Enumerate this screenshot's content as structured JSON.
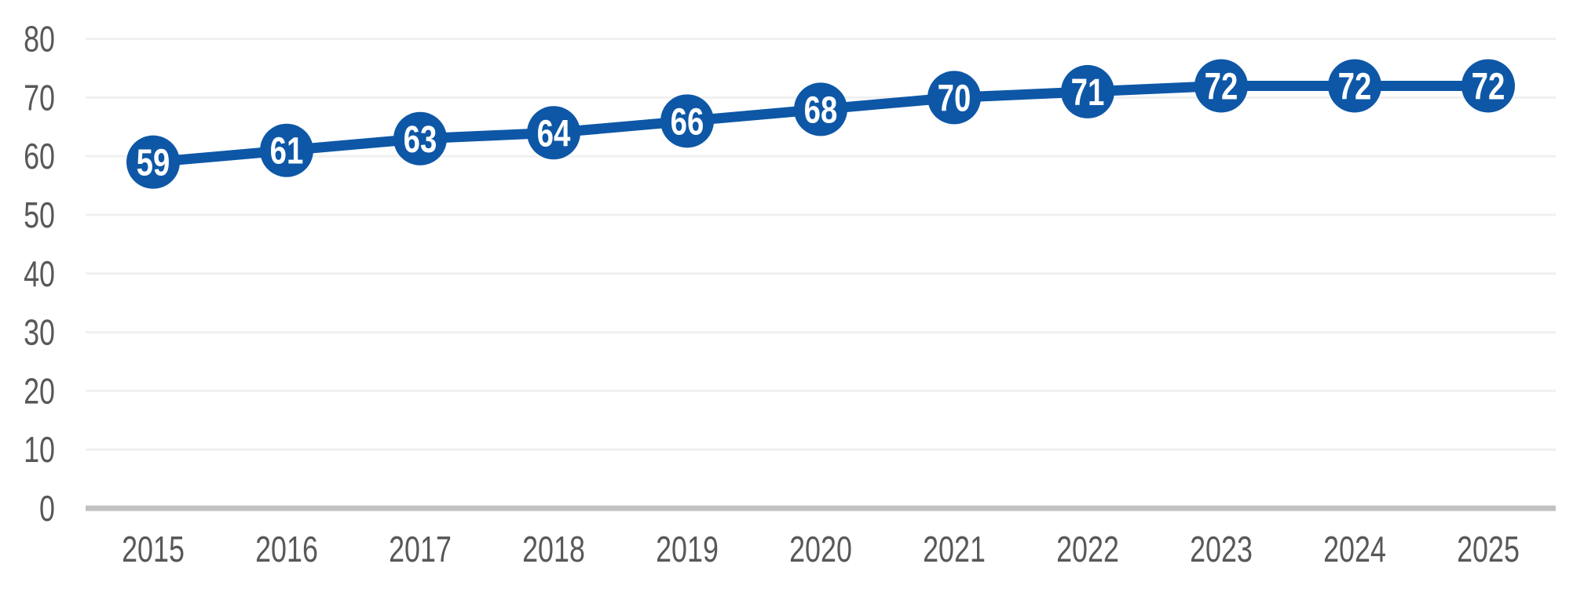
{
  "chart_data": {
    "type": "line",
    "title": "",
    "xlabel": "",
    "ylabel": "",
    "categories": [
      "2015",
      "2016",
      "2017",
      "2018",
      "2019",
      "2020",
      "2021",
      "2022",
      "2023",
      "2024",
      "2025"
    ],
    "series": [
      {
        "name": "value",
        "values": [
          59,
          61,
          63,
          64,
          66,
          68,
          70,
          71,
          72,
          72,
          72
        ]
      }
    ],
    "point_labels": [
      "59",
      "61",
      "63",
      "64",
      "66",
      "68",
      "70",
      "71",
      "72",
      "72",
      "72"
    ],
    "ylim": [
      0,
      80
    ],
    "y_ticks": [
      0,
      10,
      20,
      30,
      40,
      50,
      60,
      70,
      80
    ],
    "y_tick_labels": [
      "0",
      "10",
      "20",
      "30",
      "40",
      "50",
      "60",
      "70",
      "80"
    ],
    "grid": true,
    "legend_position": "none",
    "marker_style": "filled-circle-with-value"
  },
  "colors": {
    "line": "#0d57a6",
    "marker_fill": "#0d57a6",
    "marker_text": "#ffffff",
    "gridline": "#f0f0f0",
    "baseline": "#c1c1c1",
    "axis_label": "#58585a",
    "background": "#ffffff"
  }
}
